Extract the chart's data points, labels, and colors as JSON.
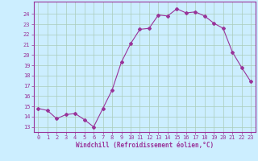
{
  "hours": [
    0,
    1,
    2,
    3,
    4,
    5,
    6,
    7,
    8,
    9,
    10,
    11,
    12,
    13,
    14,
    15,
    16,
    17,
    18,
    19,
    20,
    21,
    22,
    23
  ],
  "values": [
    14.8,
    14.6,
    13.8,
    14.2,
    14.3,
    13.7,
    13.0,
    14.8,
    16.6,
    19.3,
    21.1,
    22.5,
    22.6,
    23.9,
    23.8,
    24.5,
    24.1,
    24.2,
    23.8,
    23.1,
    22.6,
    20.3,
    18.8,
    17.4
  ],
  "line_color": "#993399",
  "marker": "D",
  "marker_size": 2,
  "bg_color": "#cceeff",
  "grid_color": "#aaccbb",
  "xlabel": "Windchill (Refroidissement éolien,°C)",
  "ylim": [
    12.5,
    25.2
  ],
  "yticks": [
    13,
    14,
    15,
    16,
    17,
    18,
    19,
    20,
    21,
    22,
    23,
    24
  ],
  "xticks": [
    0,
    1,
    2,
    3,
    4,
    5,
    6,
    7,
    8,
    9,
    10,
    11,
    12,
    13,
    14,
    15,
    16,
    17,
    18,
    19,
    20,
    21,
    22,
    23
  ],
  "axis_color": "#993399",
  "tick_color": "#993399",
  "label_color": "#993399",
  "tick_fontsize": 5.0,
  "xlabel_fontsize": 5.5
}
